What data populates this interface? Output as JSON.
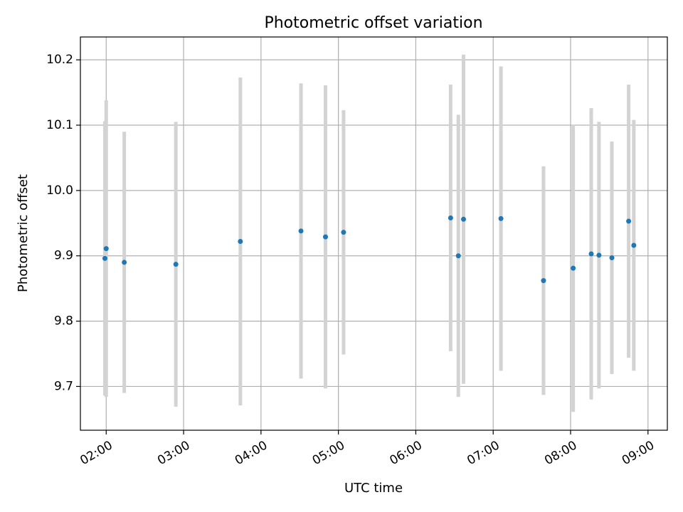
{
  "chart_data": {
    "type": "scatter",
    "title": "Photometric offset variation",
    "xlabel": "UTC time",
    "ylabel": "Photometric offset",
    "x_tick_labels": [
      "02:00",
      "03:00",
      "04:00",
      "05:00",
      "06:00",
      "07:00",
      "08:00",
      "09:00"
    ],
    "y_tick_labels": [
      "9.7",
      "9.8",
      "9.9",
      "10.0",
      "10.1",
      "10.2"
    ],
    "y_ticks": [
      9.7,
      9.8,
      9.9,
      10.0,
      10.1,
      10.2
    ],
    "xlim": [
      "01:40",
      "09:15"
    ],
    "ylim": [
      9.633,
      10.235
    ],
    "grid": true,
    "marker_color": "#1f77b4",
    "errorbar_color": "#d3d3d3",
    "series": [
      {
        "points": [
          {
            "x": "01:59",
            "y": 9.896,
            "yerr": 0.21
          },
          {
            "x": "02:00",
            "y": 9.911,
            "yerr": 0.227
          },
          {
            "x": "02:14",
            "y": 9.89,
            "yerr": 0.2
          },
          {
            "x": "02:54",
            "y": 9.887,
            "yerr": 0.218
          },
          {
            "x": "03:44",
            "y": 9.922,
            "yerr": 0.251
          },
          {
            "x": "04:31",
            "y": 9.938,
            "yerr": 0.226
          },
          {
            "x": "04:50",
            "y": 9.929,
            "yerr": 0.232
          },
          {
            "x": "05:04",
            "y": 9.936,
            "yerr": 0.187
          },
          {
            "x": "06:27",
            "y": 9.958,
            "yerr": 0.204
          },
          {
            "x": "06:33",
            "y": 9.9,
            "yerr": 0.216
          },
          {
            "x": "06:37",
            "y": 9.956,
            "yerr": 0.252
          },
          {
            "x": "07:06",
            "y": 9.957,
            "yerr": 0.233
          },
          {
            "x": "07:39",
            "y": 9.862,
            "yerr": 0.175
          },
          {
            "x": "08:02",
            "y": 9.881,
            "yerr": 0.22
          },
          {
            "x": "08:16",
            "y": 9.903,
            "yerr": 0.223
          },
          {
            "x": "08:22",
            "y": 9.901,
            "yerr": 0.204
          },
          {
            "x": "08:32",
            "y": 9.897,
            "yerr": 0.178
          },
          {
            "x": "08:45",
            "y": 9.953,
            "yerr": 0.209
          },
          {
            "x": "08:49",
            "y": 9.916,
            "yerr": 0.192
          }
        ]
      }
    ]
  }
}
